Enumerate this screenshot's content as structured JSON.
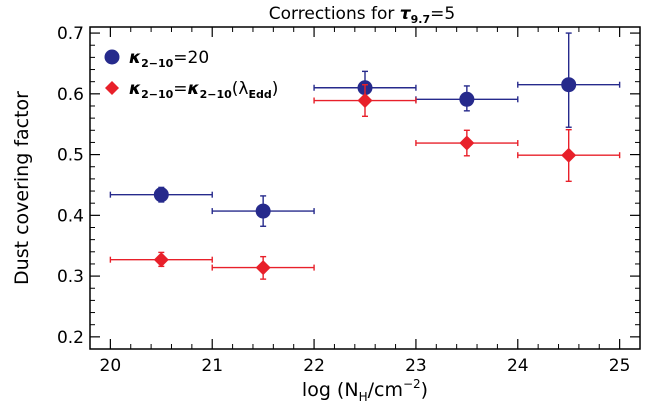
{
  "chart_data": {
    "type": "scatter",
    "title": {
      "prefix": "Corrections for ",
      "symbol": "τ",
      "sub": "9.7",
      "suffix": "=5"
    },
    "xlabel": {
      "prefix": "log (N",
      "sub": "H",
      "mid": "/cm",
      "sup": "−2",
      "suffix": ")"
    },
    "ylabel": "Dust covering factor",
    "xlim": [
      19.8,
      25.2
    ],
    "ylim": [
      0.18,
      0.71
    ],
    "xticks": [
      20,
      21,
      22,
      23,
      24,
      25
    ],
    "yticks": [
      0.2,
      0.3,
      0.4,
      0.5,
      0.6,
      0.7
    ],
    "xtick_labels": [
      "20",
      "21",
      "22",
      "23",
      "24",
      "25"
    ],
    "ytick_labels": [
      "0.2",
      "0.3",
      "0.4",
      "0.5",
      "0.6",
      "0.7"
    ],
    "series": [
      {
        "label": {
          "symbol": "κ",
          "sub": "2−10",
          "rest": "=20"
        },
        "marker": "circle",
        "color": "#262a8c",
        "points": [
          {
            "x": 20.5,
            "xlo": 20.0,
            "xhi": 21.0,
            "y": 0.434,
            "ylo": 0.422,
            "yhi": 0.446
          },
          {
            "x": 21.5,
            "xlo": 21.0,
            "xhi": 22.0,
            "y": 0.407,
            "ylo": 0.382,
            "yhi": 0.432
          },
          {
            "x": 22.5,
            "xlo": 22.0,
            "xhi": 23.0,
            "y": 0.61,
            "ylo": 0.585,
            "yhi": 0.637
          },
          {
            "x": 23.5,
            "xlo": 23.0,
            "xhi": 24.0,
            "y": 0.591,
            "ylo": 0.572,
            "yhi": 0.613
          },
          {
            "x": 24.5,
            "xlo": 24.0,
            "xhi": 25.0,
            "y": 0.615,
            "ylo": 0.545,
            "yhi": 0.7
          }
        ]
      },
      {
        "label": {
          "symbol": "κ",
          "sub": "2−10",
          "rest": "=",
          "symbol2": "κ",
          "sub2": "2−10",
          "paren_open": "(",
          "symbol3": "λ",
          "sub3": "Edd",
          "paren_close": ")"
        },
        "marker": "diamond",
        "color": "#e8202a",
        "points": [
          {
            "x": 20.5,
            "xlo": 20.0,
            "xhi": 21.0,
            "y": 0.327,
            "ylo": 0.316,
            "yhi": 0.339
          },
          {
            "x": 21.5,
            "xlo": 21.0,
            "xhi": 22.0,
            "y": 0.314,
            "ylo": 0.295,
            "yhi": 0.332
          },
          {
            "x": 22.5,
            "xlo": 22.0,
            "xhi": 23.0,
            "y": 0.589,
            "ylo": 0.563,
            "yhi": 0.615
          },
          {
            "x": 23.5,
            "xlo": 23.0,
            "xhi": 24.0,
            "y": 0.519,
            "ylo": 0.498,
            "yhi": 0.54
          },
          {
            "x": 24.5,
            "xlo": 24.0,
            "xhi": 25.0,
            "y": 0.499,
            "ylo": 0.456,
            "yhi": 0.541
          }
        ]
      }
    ],
    "legend_position": "top-left",
    "grid": false
  }
}
